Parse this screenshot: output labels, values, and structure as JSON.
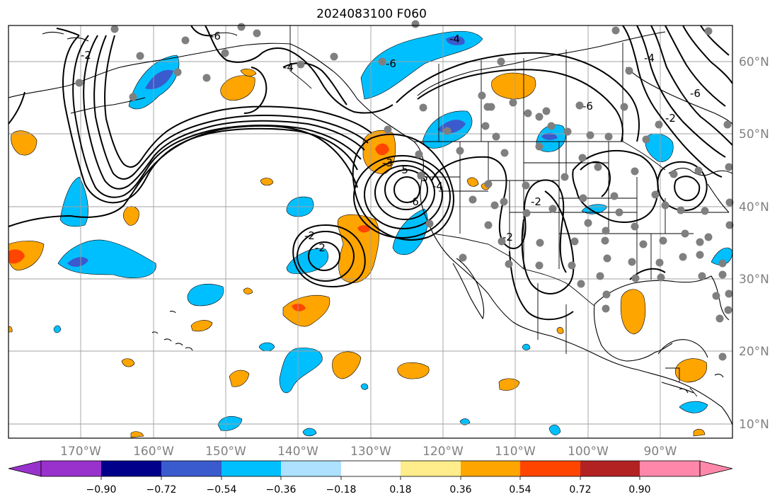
{
  "title": "2024083100 F060",
  "map": {
    "lat_labels": [
      "60°N",
      "50°N",
      "40°N",
      "30°N",
      "20°N",
      "10°N"
    ],
    "lon_labels": [
      "170°W",
      "160°W",
      "150°W",
      "140°W",
      "130°W",
      "120°W",
      "110°W",
      "100°W",
      "90°W"
    ],
    "contour_labels": [
      "-2",
      "-4",
      "-6",
      "-3",
      "-6",
      "-4",
      "-2",
      "-6",
      "-2",
      "-2",
      "-6",
      "-4",
      "-2",
      "-5",
      "-5",
      "-4",
      "-6",
      "-2"
    ],
    "colors": {
      "land_outline": "#000000",
      "gridline": "#a0a0a0",
      "dot": "#7f7f7f",
      "contour": "#000000"
    }
  },
  "colorbar": {
    "ticks": [
      "−0.90",
      "−0.72",
      "−0.54",
      "−0.36",
      "−0.18",
      "0.18",
      "0.36",
      "0.54",
      "0.72",
      "0.90"
    ],
    "colors": [
      "#9932cc",
      "#00008b",
      "#3a5bcd",
      "#00bfff",
      "#ade1ff",
      "#ffffff",
      "#ffec8b",
      "#ffa500",
      "#ff4500",
      "#b22222",
      "#ff88aa"
    ]
  }
}
